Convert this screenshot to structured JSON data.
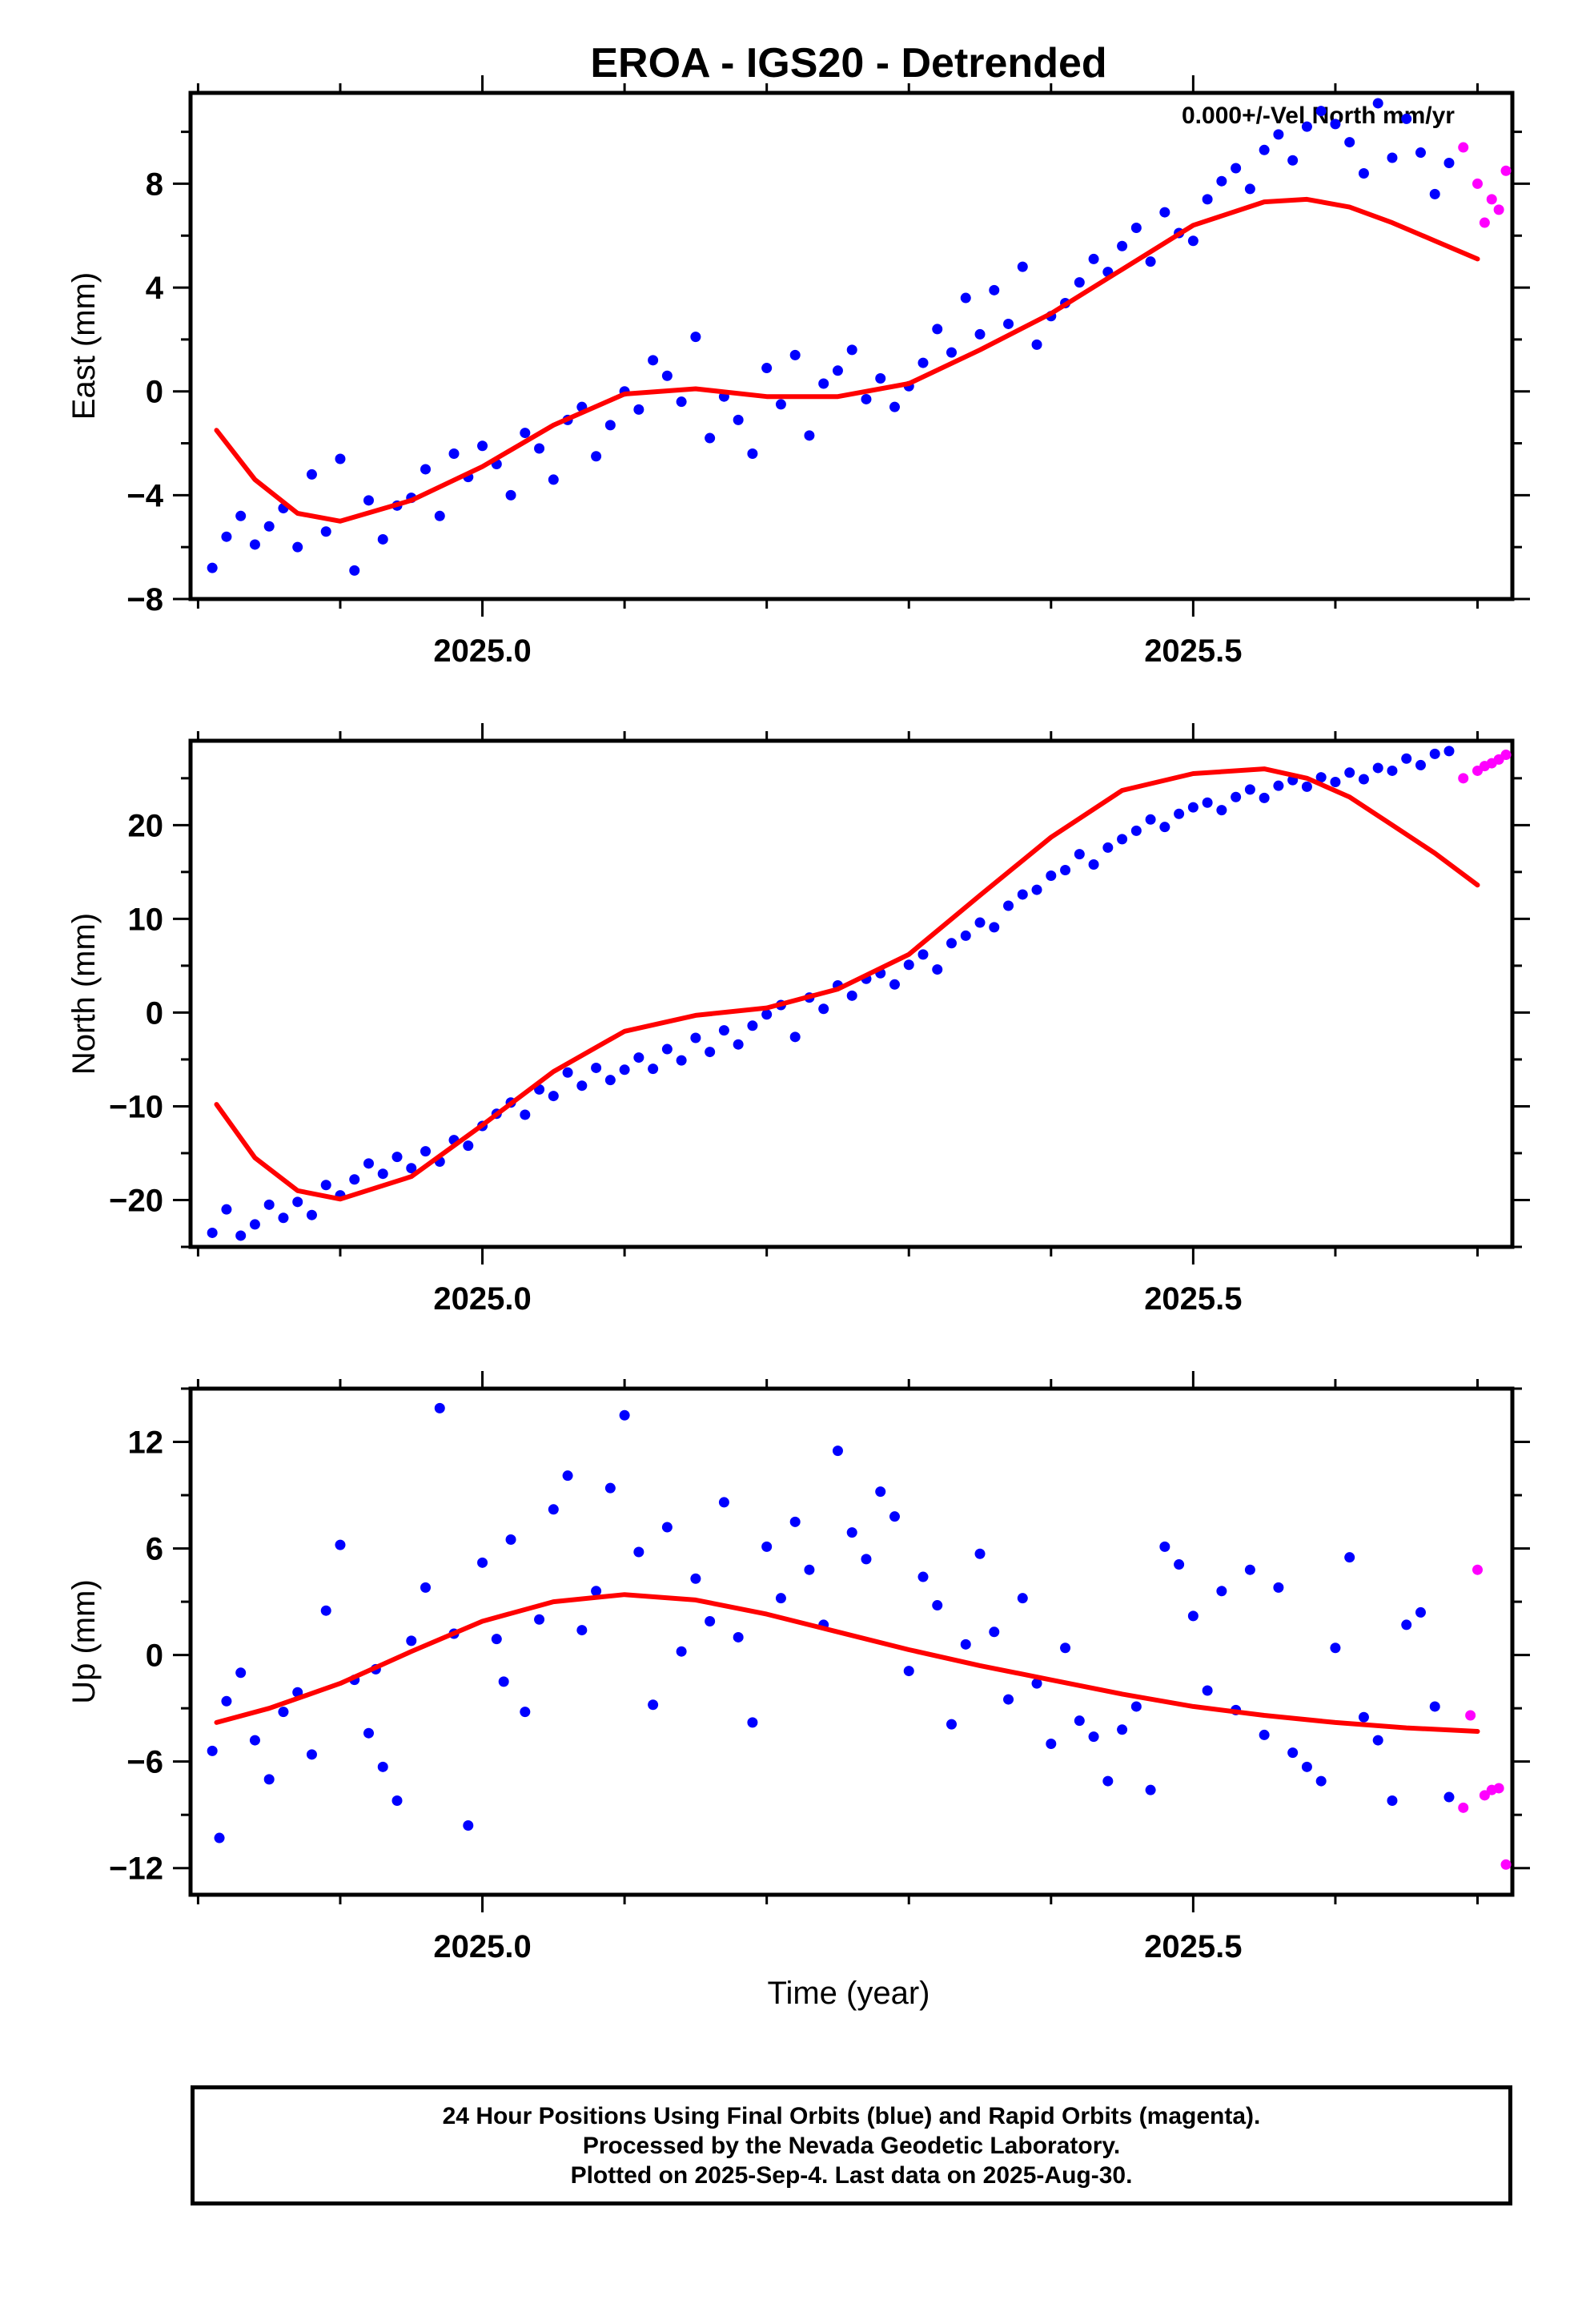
{
  "title": "EROA - IGS20 - Detrended",
  "xlabel": "Time (year)",
  "colors": {
    "final": "#0000ff",
    "rapid": "#ff00ff",
    "model": "#ff0000"
  },
  "caption": [
    "24 Hour Positions Using Final Orbits (blue) and Rapid Orbits (magenta).",
    "Processed by the Nevada Geodetic Laboratory.",
    "Plotted on 2025-Sep-4. Last data on 2025-Aug-30."
  ],
  "chart_data": [
    {
      "type": "scatter",
      "ylabel": "East (mm)",
      "annotation": "0.000+/-Vel North mm/yr",
      "xlim": [
        2024.7947,
        2025.7245
      ],
      "ylim": [
        -8,
        11.5
      ],
      "x_ticks": [
        2025.0,
        2025.5
      ],
      "x_tick_labels": [
        "2025.0",
        "2025.5"
      ],
      "y_ticks": [
        -8,
        -4,
        0,
        4,
        8
      ],
      "y_tick_labels": [
        "−8",
        "−4",
        "0",
        "4",
        "8"
      ],
      "model": {
        "x": [
          2024.813,
          2024.84,
          2024.87,
          2024.9,
          2024.95,
          2025.0,
          2025.05,
          2025.1,
          2025.15,
          2025.2,
          2025.25,
          2025.3,
          2025.35,
          2025.4,
          2025.45,
          2025.5,
          2025.55,
          2025.58,
          2025.61,
          2025.64,
          2025.67,
          2025.7
        ],
        "y": [
          -1.5,
          -3.4,
          -4.7,
          -5.0,
          -4.2,
          -2.9,
          -1.3,
          -0.1,
          0.1,
          -0.2,
          -0.2,
          0.3,
          1.6,
          3.0,
          4.7,
          6.4,
          7.3,
          7.4,
          7.1,
          6.5,
          5.8,
          5.1
        ]
      },
      "final": {
        "x": [
          2024.81,
          2024.82,
          2024.83,
          2024.84,
          2024.85,
          2024.86,
          2024.87,
          2024.88,
          2024.89,
          2024.9,
          2024.91,
          2024.92,
          2024.93,
          2024.94,
          2024.95,
          2024.96,
          2024.97,
          2024.98,
          2024.99,
          2025.0,
          2025.01,
          2025.02,
          2025.03,
          2025.04,
          2025.05,
          2025.06,
          2025.07,
          2025.08,
          2025.09,
          2025.1,
          2025.11,
          2025.12,
          2025.13,
          2025.14,
          2025.15,
          2025.16,
          2025.17,
          2025.18,
          2025.19,
          2025.2,
          2025.21,
          2025.22,
          2025.23,
          2025.24,
          2025.25,
          2025.26,
          2025.27,
          2025.28,
          2025.29,
          2025.3,
          2025.31,
          2025.32,
          2025.33,
          2025.34,
          2025.35,
          2025.36,
          2025.37,
          2025.38,
          2025.39,
          2025.4,
          2025.41,
          2025.42,
          2025.43,
          2025.44,
          2025.45,
          2025.46,
          2025.47,
          2025.48,
          2025.49,
          2025.5,
          2025.51,
          2025.52,
          2025.53,
          2025.54,
          2025.55,
          2025.56,
          2025.57,
          2025.58,
          2025.59,
          2025.6,
          2025.61,
          2025.62,
          2025.63,
          2025.64,
          2025.65,
          2025.66,
          2025.67,
          2025.68
        ],
        "y": [
          -6.8,
          -5.6,
          -4.8,
          -5.9,
          -5.2,
          -4.5,
          -6.0,
          -3.2,
          -5.4,
          -2.6,
          -6.9,
          -4.2,
          -5.7,
          -4.4,
          -4.1,
          -3.0,
          -4.8,
          -2.4,
          -3.3,
          -2.1,
          -2.8,
          -4.0,
          -1.6,
          -2.2,
          -3.4,
          -1.1,
          -0.6,
          -2.5,
          -1.3,
          0.0,
          -0.7,
          1.2,
          0.6,
          -0.4,
          2.1,
          -1.8,
          -0.2,
          -1.1,
          -2.4,
          0.9,
          -0.5,
          1.4,
          -1.7,
          0.3,
          0.8,
          1.6,
          -0.3,
          0.5,
          -0.6,
          0.2,
          1.1,
          2.4,
          1.5,
          3.6,
          2.2,
          3.9,
          2.6,
          4.8,
          1.8,
          2.9,
          3.4,
          4.2,
          5.1,
          4.6,
          5.6,
          6.3,
          5.0,
          6.9,
          6.1,
          5.8,
          7.4,
          8.1,
          8.6,
          7.8,
          9.3,
          9.9,
          8.9,
          10.2,
          10.8,
          10.3,
          9.6,
          8.4,
          11.1,
          9.0,
          10.5,
          9.2,
          7.6,
          8.8
        ]
      },
      "rapid": {
        "x": [
          2025.69,
          2025.7,
          2025.705,
          2025.71,
          2025.715,
          2025.72
        ],
        "y": [
          9.4,
          8.0,
          6.5,
          7.4,
          7.0,
          8.5
        ]
      }
    },
    {
      "type": "scatter",
      "ylabel": "North (mm)",
      "xlim": [
        2024.7947,
        2025.7245
      ],
      "ylim": [
        -25,
        29
      ],
      "x_ticks": [
        2025.0,
        2025.5
      ],
      "x_tick_labels": [
        "2025.0",
        "2025.5"
      ],
      "y_ticks": [
        -20,
        -10,
        0,
        10,
        20
      ],
      "y_tick_labels": [
        "−20",
        "−10",
        "0",
        "10",
        "20"
      ],
      "model": {
        "x": [
          2024.813,
          2024.84,
          2024.87,
          2024.9,
          2024.95,
          2025.0,
          2025.05,
          2025.1,
          2025.15,
          2025.2,
          2025.25,
          2025.3,
          2025.35,
          2025.4,
          2025.45,
          2025.5,
          2025.55,
          2025.58,
          2025.61,
          2025.64,
          2025.67,
          2025.7
        ],
        "y": [
          -9.8,
          -15.5,
          -19.0,
          -19.9,
          -17.5,
          -12.0,
          -6.3,
          -2.0,
          -0.3,
          0.5,
          2.5,
          6.2,
          12.5,
          18.7,
          23.7,
          25.5,
          26.0,
          25.0,
          23.0,
          20.0,
          17.0,
          13.6
        ]
      },
      "final": {
        "x": [
          2024.81,
          2024.82,
          2024.83,
          2024.84,
          2024.85,
          2024.86,
          2024.87,
          2024.88,
          2024.89,
          2024.9,
          2024.91,
          2024.92,
          2024.93,
          2024.94,
          2024.95,
          2024.96,
          2024.97,
          2024.98,
          2024.99,
          2025.0,
          2025.01,
          2025.02,
          2025.03,
          2025.04,
          2025.05,
          2025.06,
          2025.07,
          2025.08,
          2025.09,
          2025.1,
          2025.11,
          2025.12,
          2025.13,
          2025.14,
          2025.15,
          2025.16,
          2025.17,
          2025.18,
          2025.19,
          2025.2,
          2025.21,
          2025.22,
          2025.23,
          2025.24,
          2025.25,
          2025.26,
          2025.27,
          2025.28,
          2025.29,
          2025.3,
          2025.31,
          2025.32,
          2025.33,
          2025.34,
          2025.35,
          2025.36,
          2025.37,
          2025.38,
          2025.39,
          2025.4,
          2025.41,
          2025.42,
          2025.43,
          2025.44,
          2025.45,
          2025.46,
          2025.47,
          2025.48,
          2025.49,
          2025.5,
          2025.51,
          2025.52,
          2025.53,
          2025.54,
          2025.55,
          2025.56,
          2025.57,
          2025.58,
          2025.59,
          2025.6,
          2025.61,
          2025.62,
          2025.63,
          2025.64,
          2025.65,
          2025.66,
          2025.67,
          2025.68
        ],
        "y": [
          -23.5,
          -21.0,
          -23.8,
          -22.6,
          -20.5,
          -21.9,
          -20.2,
          -21.6,
          -18.4,
          -19.5,
          -17.8,
          -16.1,
          -17.2,
          -15.4,
          -16.6,
          -14.8,
          -15.9,
          -13.6,
          -14.2,
          -12.1,
          -10.8,
          -9.6,
          -10.9,
          -8.2,
          -8.9,
          -6.4,
          -7.8,
          -5.9,
          -7.2,
          -6.1,
          -4.8,
          -6.0,
          -3.9,
          -5.1,
          -2.7,
          -4.2,
          -1.9,
          -3.4,
          -1.4,
          -0.2,
          0.8,
          -2.6,
          1.6,
          0.4,
          2.9,
          1.8,
          3.6,
          4.2,
          3.0,
          5.1,
          6.2,
          4.6,
          7.4,
          8.2,
          9.6,
          9.1,
          11.4,
          12.6,
          13.1,
          14.6,
          15.2,
          16.9,
          15.8,
          17.6,
          18.5,
          19.4,
          20.6,
          19.8,
          21.2,
          21.9,
          22.4,
          21.6,
          23.0,
          23.8,
          22.9,
          24.2,
          24.8,
          24.1,
          25.1,
          24.6,
          25.6,
          24.9,
          26.1,
          25.8,
          27.1,
          26.4,
          27.6,
          27.9
        ]
      },
      "rapid": {
        "x": [
          2025.69,
          2025.7,
          2025.705,
          2025.71,
          2025.715,
          2025.72
        ],
        "y": [
          25.0,
          25.8,
          26.3,
          26.6,
          27.0,
          27.5
        ]
      }
    },
    {
      "type": "scatter",
      "ylabel": "Up (mm)",
      "xlim": [
        2024.7947,
        2025.7245
      ],
      "ylim": [
        -13.5,
        15
      ],
      "x_ticks": [
        2025.0,
        2025.5
      ],
      "x_tick_labels": [
        "2025.0",
        "2025.5"
      ],
      "y_ticks": [
        -12,
        -6,
        0,
        6,
        12
      ],
      "y_tick_labels": [
        "−12",
        "−6",
        "0",
        "6",
        "12"
      ],
      "model": {
        "x": [
          2024.813,
          2024.85,
          2024.9,
          2024.95,
          2025.0,
          2025.05,
          2025.1,
          2025.15,
          2025.2,
          2025.25,
          2025.3,
          2025.35,
          2025.4,
          2025.45,
          2025.5,
          2025.55,
          2025.6,
          2025.65,
          2025.7
        ],
        "y": [
          -3.8,
          -3.0,
          -1.6,
          0.2,
          1.9,
          3.0,
          3.4,
          3.1,
          2.3,
          1.3,
          0.3,
          -0.6,
          -1.4,
          -2.2,
          -2.9,
          -3.4,
          -3.8,
          -4.1,
          -4.3
        ]
      },
      "final": {
        "x": [
          2024.81,
          2024.815,
          2024.82,
          2024.83,
          2024.84,
          2024.85,
          2024.86,
          2024.87,
          2024.88,
          2024.89,
          2024.9,
          2024.91,
          2024.92,
          2024.925,
          2024.93,
          2024.94,
          2024.95,
          2024.96,
          2024.97,
          2024.98,
          2024.99,
          2025.0,
          2025.01,
          2025.015,
          2025.02,
          2025.03,
          2025.04,
          2025.05,
          2025.06,
          2025.07,
          2025.08,
          2025.09,
          2025.1,
          2025.11,
          2025.12,
          2025.13,
          2025.14,
          2025.15,
          2025.16,
          2025.17,
          2025.18,
          2025.19,
          2025.2,
          2025.21,
          2025.22,
          2025.23,
          2025.24,
          2025.25,
          2025.26,
          2025.27,
          2025.28,
          2025.29,
          2025.3,
          2025.31,
          2025.32,
          2025.33,
          2025.34,
          2025.35,
          2025.36,
          2025.37,
          2025.38,
          2025.39,
          2025.4,
          2025.41,
          2025.42,
          2025.43,
          2025.44,
          2025.45,
          2025.46,
          2025.47,
          2025.48,
          2025.49,
          2025.5,
          2025.51,
          2025.52,
          2025.53,
          2025.54,
          2025.55,
          2025.56,
          2025.57,
          2025.58,
          2025.59,
          2025.6,
          2025.61,
          2025.62,
          2025.63,
          2025.64,
          2025.65,
          2025.66,
          2025.67,
          2025.68
        ],
        "y": [
          -5.4,
          -10.3,
          -2.6,
          -1.0,
          -4.8,
          -7.0,
          -3.2,
          -2.1,
          -5.6,
          2.5,
          6.2,
          -1.4,
          -4.4,
          -0.8,
          -6.3,
          -8.2,
          0.8,
          3.8,
          13.9,
          1.2,
          -9.6,
          5.2,
          0.9,
          -1.5,
          6.5,
          -3.2,
          2.0,
          8.2,
          10.1,
          1.4,
          3.6,
          9.4,
          13.5,
          5.8,
          -2.8,
          7.2,
          0.2,
          4.3,
          1.9,
          8.6,
          1.0,
          -3.8,
          6.1,
          3.2,
          7.5,
          4.8,
          1.7,
          11.5,
          6.9,
          5.4,
          9.2,
          7.8,
          -0.9,
          4.4,
          2.8,
          -3.9,
          0.6,
          5.7,
          1.3,
          -2.5,
          3.2,
          -1.6,
          -5.0,
          0.4,
          -3.7,
          -4.6,
          -7.1,
          -4.2,
          -2.9,
          -7.6,
          6.1,
          5.1,
          2.2,
          -2.0,
          3.6,
          -3.1,
          4.8,
          -4.5,
          3.8,
          -5.5,
          -6.3,
          -7.1,
          0.4,
          5.5,
          -3.5,
          -4.8,
          -8.2,
          1.7,
          2.4,
          -2.9,
          -8.0
        ]
      },
      "rapid": {
        "x": [
          2025.69,
          2025.695,
          2025.7,
          2025.705,
          2025.71,
          2025.715,
          2025.72
        ],
        "y": [
          -8.6,
          -3.4,
          4.8,
          -7.9,
          -7.6,
          -7.5,
          -11.8
        ]
      }
    }
  ]
}
